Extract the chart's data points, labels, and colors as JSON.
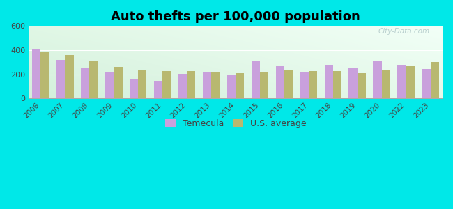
{
  "title": "Auto thefts per 100,000 population",
  "years": [
    2006,
    2007,
    2008,
    2009,
    2010,
    2011,
    2012,
    2013,
    2014,
    2015,
    2016,
    2017,
    2018,
    2019,
    2020,
    2022,
    2023
  ],
  "temecula": [
    410,
    320,
    250,
    215,
    165,
    148,
    202,
    220,
    197,
    305,
    265,
    217,
    270,
    248,
    305,
    272,
    242
  ],
  "us_average": [
    390,
    358,
    305,
    258,
    237,
    228,
    228,
    222,
    208,
    217,
    230,
    228,
    226,
    207,
    234,
    265,
    300
  ],
  "temecula_color": "#c9a0dc",
  "us_color": "#b8b870",
  "outer_bg": "#00e8e8",
  "ylim": [
    0,
    600
  ],
  "yticks": [
    0,
    200,
    400,
    600
  ],
  "bar_width": 0.35,
  "title_fontsize": 13,
  "legend_labels": [
    "Temecula",
    "U.S. average"
  ]
}
